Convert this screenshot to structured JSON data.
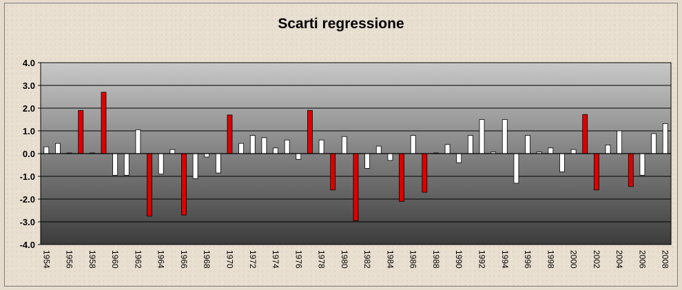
{
  "chart_data": {
    "type": "bar",
    "title": "Scarti regressione",
    "xlabel": "",
    "ylabel": "",
    "ylim": [
      -4.0,
      4.0
    ],
    "y_ticks": [
      "4.0",
      "3.0",
      "2.0",
      "1.0",
      "0.0",
      "-1.0",
      "-2.0",
      "-3.0",
      "-4.0"
    ],
    "y_tick_values": [
      4,
      3,
      2,
      1,
      0,
      -1,
      -2,
      -3,
      -4
    ],
    "x_tick_labels": [
      "1954",
      "1956",
      "1958",
      "1960",
      "1962",
      "1964",
      "1966",
      "1968",
      "1970",
      "1972",
      "1974",
      "1976",
      "1978",
      "1980",
      "1982",
      "1984",
      "1986",
      "1988",
      "1990",
      "1992",
      "1994",
      "1996",
      "1998",
      "2000",
      "2002",
      "2004",
      "2006",
      "2008"
    ],
    "grid": true,
    "legend": "none",
    "colors": {
      "normal": "#ffffff",
      "highlight": "#dd0000",
      "bar_stroke": "#000000"
    },
    "categories": [
      1954,
      1955,
      1956,
      1957,
      1958,
      1959,
      1960,
      1961,
      1962,
      1963,
      1964,
      1965,
      1966,
      1967,
      1968,
      1969,
      1970,
      1971,
      1972,
      1973,
      1974,
      1975,
      1976,
      1977,
      1978,
      1979,
      1980,
      1981,
      1982,
      1983,
      1984,
      1985,
      1986,
      1987,
      1988,
      1989,
      1990,
      1991,
      1992,
      1993,
      1994,
      1995,
      1996,
      1997,
      1998,
      1999,
      2000,
      2001,
      2002,
      2003,
      2004,
      2005,
      2006,
      2007,
      2008
    ],
    "values": [
      0.3,
      0.45,
      0.03,
      1.9,
      0.03,
      2.7,
      -0.95,
      -0.95,
      1.05,
      -2.75,
      -0.9,
      0.18,
      -2.7,
      -1.1,
      -0.15,
      -0.85,
      1.7,
      0.45,
      0.8,
      0.7,
      0.25,
      0.6,
      -0.25,
      1.9,
      0.6,
      -1.6,
      0.75,
      -2.95,
      -0.65,
      0.33,
      -0.3,
      -2.1,
      0.8,
      -1.7,
      0.03,
      0.4,
      -0.4,
      0.8,
      1.5,
      0.07,
      1.5,
      -1.3,
      0.8,
      0.07,
      0.25,
      -0.8,
      0.18,
      1.72,
      -1.6,
      0.38,
      1.0,
      -1.45,
      -0.95,
      0.88,
      1.32
    ],
    "highlighted": [
      1957,
      1959,
      1963,
      1966,
      1970,
      1977,
      1979,
      1981,
      1985,
      1987,
      2001,
      2002,
      2005
    ]
  }
}
